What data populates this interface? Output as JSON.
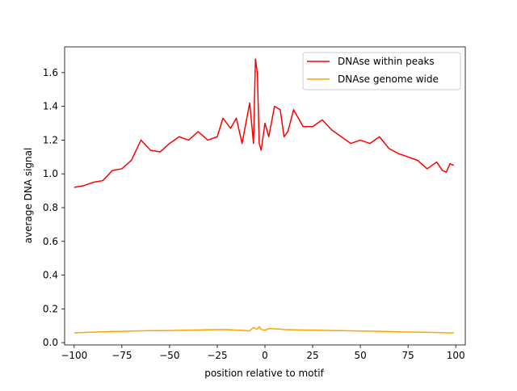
{
  "chart_data": {
    "type": "line",
    "title": "",
    "xlabel": "position relative to motif",
    "ylabel": "average DNA signal",
    "xlim": [
      -105,
      105
    ],
    "ylim": [
      -0.0138,
      1.7525
    ],
    "xticks": [
      -100,
      -75,
      -50,
      -25,
      0,
      25,
      50,
      75,
      100
    ],
    "xtick_labels": [
      "−100",
      "−75",
      "−50",
      "−25",
      "0",
      "25",
      "50",
      "75",
      "100"
    ],
    "yticks": [
      0.0,
      0.2,
      0.4,
      0.6,
      0.8,
      1.0,
      1.2,
      1.4,
      1.6
    ],
    "ytick_labels": [
      "0.0",
      "0.2",
      "0.4",
      "0.6",
      "0.8",
      "1.0",
      "1.2",
      "1.4",
      "1.6"
    ],
    "grid": false,
    "legend_position": "top-right",
    "x": [
      -100,
      -95,
      -90,
      -85,
      -80,
      -75,
      -70,
      -65,
      -60,
      -55,
      -50,
      -45,
      -40,
      -35,
      -30,
      -25,
      -22,
      -18,
      -15,
      -12,
      -8,
      -6,
      -5,
      -4,
      -3,
      -2,
      0,
      2,
      5,
      8,
      10,
      12,
      15,
      20,
      25,
      30,
      35,
      40,
      45,
      50,
      55,
      60,
      65,
      70,
      75,
      80,
      85,
      90,
      93,
      95,
      97,
      99
    ],
    "series": [
      {
        "name": "DNAse within peaks",
        "color": "#ff0000",
        "values": [
          0.92,
          0.93,
          0.95,
          0.96,
          1.02,
          1.03,
          1.08,
          1.2,
          1.14,
          1.13,
          1.18,
          1.22,
          1.2,
          1.25,
          1.2,
          1.22,
          1.33,
          1.27,
          1.33,
          1.18,
          1.42,
          1.18,
          1.68,
          1.6,
          1.18,
          1.14,
          1.3,
          1.22,
          1.4,
          1.38,
          1.22,
          1.25,
          1.38,
          1.28,
          1.28,
          1.32,
          1.26,
          1.22,
          1.18,
          1.2,
          1.18,
          1.22,
          1.15,
          1.12,
          1.1,
          1.08,
          1.03,
          1.07,
          1.02,
          1.01,
          1.06,
          1.05
        ]
      },
      {
        "name": "DNAse genome wide",
        "color": "#ffa500",
        "values": [
          0.058,
          0.06,
          0.062,
          0.064,
          0.066,
          0.067,
          0.069,
          0.07,
          0.071,
          0.071,
          0.072,
          0.073,
          0.074,
          0.075,
          0.076,
          0.077,
          0.078,
          0.076,
          0.074,
          0.073,
          0.07,
          0.09,
          0.083,
          0.08,
          0.095,
          0.078,
          0.074,
          0.083,
          0.082,
          0.08,
          0.078,
          0.077,
          0.076,
          0.075,
          0.074,
          0.073,
          0.072,
          0.071,
          0.07,
          0.069,
          0.068,
          0.067,
          0.066,
          0.064,
          0.063,
          0.062,
          0.061,
          0.06,
          0.059,
          0.058,
          0.058,
          0.058
        ]
      }
    ]
  }
}
